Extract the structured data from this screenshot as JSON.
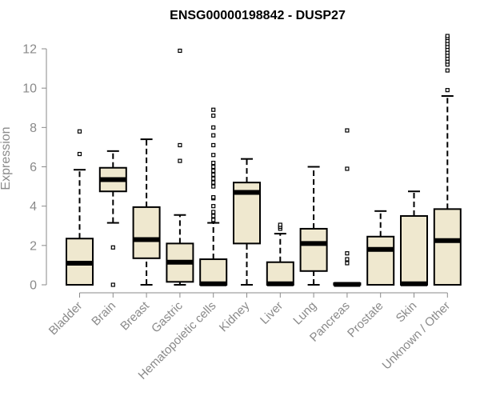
{
  "chart_data": {
    "type": "box",
    "title": "ENSG00000198842 - DUSP27",
    "xlabel": "",
    "ylabel": "Expression",
    "ylim": [
      0,
      12.6
    ],
    "yticks": [
      0,
      2,
      4,
      6,
      8,
      10,
      12
    ],
    "grid": false,
    "colors": {
      "box_fill": "#efe8cf",
      "box_stroke": "#000000",
      "axis": "#8a8a8a"
    },
    "categories": [
      "Bladder",
      "Brain",
      "Breast",
      "Gastric",
      "Hematopoietic cells",
      "Kidney",
      "Liver",
      "Lung",
      "Pancreas",
      "Prostate",
      "Skin",
      "Unknown / Other"
    ],
    "boxes": [
      {
        "category": "Bladder",
        "whisker_low": 0,
        "q1": 0,
        "median": 1.1,
        "q3": 2.35,
        "whisker_high": 5.85,
        "outliers": [
          6.65,
          7.8
        ]
      },
      {
        "category": "Brain",
        "whisker_low": 3.15,
        "q1": 4.75,
        "median": 5.35,
        "q3": 5.95,
        "whisker_high": 6.8,
        "outliers": [
          1.9,
          0.0
        ]
      },
      {
        "category": "Breast",
        "whisker_low": 0,
        "q1": 1.35,
        "median": 2.3,
        "q3": 3.95,
        "whisker_high": 7.4,
        "outliers": []
      },
      {
        "category": "Gastric",
        "whisker_low": 0,
        "q1": 0.15,
        "median": 1.15,
        "q3": 2.1,
        "whisker_high": 3.55,
        "outliers": [
          6.3,
          7.1,
          11.9
        ]
      },
      {
        "category": "Hematopoietic cells",
        "whisker_low": 0,
        "q1": 0,
        "median": 0.05,
        "q3": 1.3,
        "whisker_high": 3.15,
        "outliers": [
          3.3,
          3.5,
          3.7,
          4.0,
          4.4,
          4.45,
          5.0,
          5.2,
          5.4,
          5.6,
          5.8,
          6.0,
          6.2,
          6.6,
          7.1,
          7.6,
          8.0,
          8.6,
          8.9
        ]
      },
      {
        "category": "Kidney",
        "whisker_low": 0,
        "q1": 2.1,
        "median": 4.7,
        "q3": 5.2,
        "whisker_high": 6.4,
        "outliers": []
      },
      {
        "category": "Liver",
        "whisker_low": 0,
        "q1": 0,
        "median": 0.05,
        "q3": 1.15,
        "whisker_high": 2.6,
        "outliers": [
          2.85,
          2.95,
          3.05
        ]
      },
      {
        "category": "Lung",
        "whisker_low": 0,
        "q1": 0.7,
        "median": 2.1,
        "q3": 2.85,
        "whisker_high": 6.0,
        "outliers": []
      },
      {
        "category": "Pancreas",
        "whisker_low": 0,
        "q1": 0,
        "median": 0.02,
        "q3": 0.08,
        "whisker_high": 0.1,
        "outliers": [
          1.1,
          1.3,
          1.6,
          5.9,
          7.85
        ]
      },
      {
        "category": "Prostate",
        "whisker_low": 0,
        "q1": 0,
        "median": 1.8,
        "q3": 2.45,
        "whisker_high": 3.75,
        "outliers": []
      },
      {
        "category": "Skin",
        "whisker_low": 0,
        "q1": 0,
        "median": 0.05,
        "q3": 3.5,
        "whisker_high": 4.75,
        "outliers": []
      },
      {
        "category": "Unknown / Other",
        "whisker_low": 0,
        "q1": 0,
        "median": 2.25,
        "q3": 3.85,
        "whisker_high": 9.6,
        "outliers": [
          9.9,
          10.9,
          11.2,
          11.35,
          11.5,
          11.65,
          11.8,
          11.95,
          12.1,
          12.25,
          12.4,
          12.55,
          12.65
        ]
      }
    ]
  }
}
